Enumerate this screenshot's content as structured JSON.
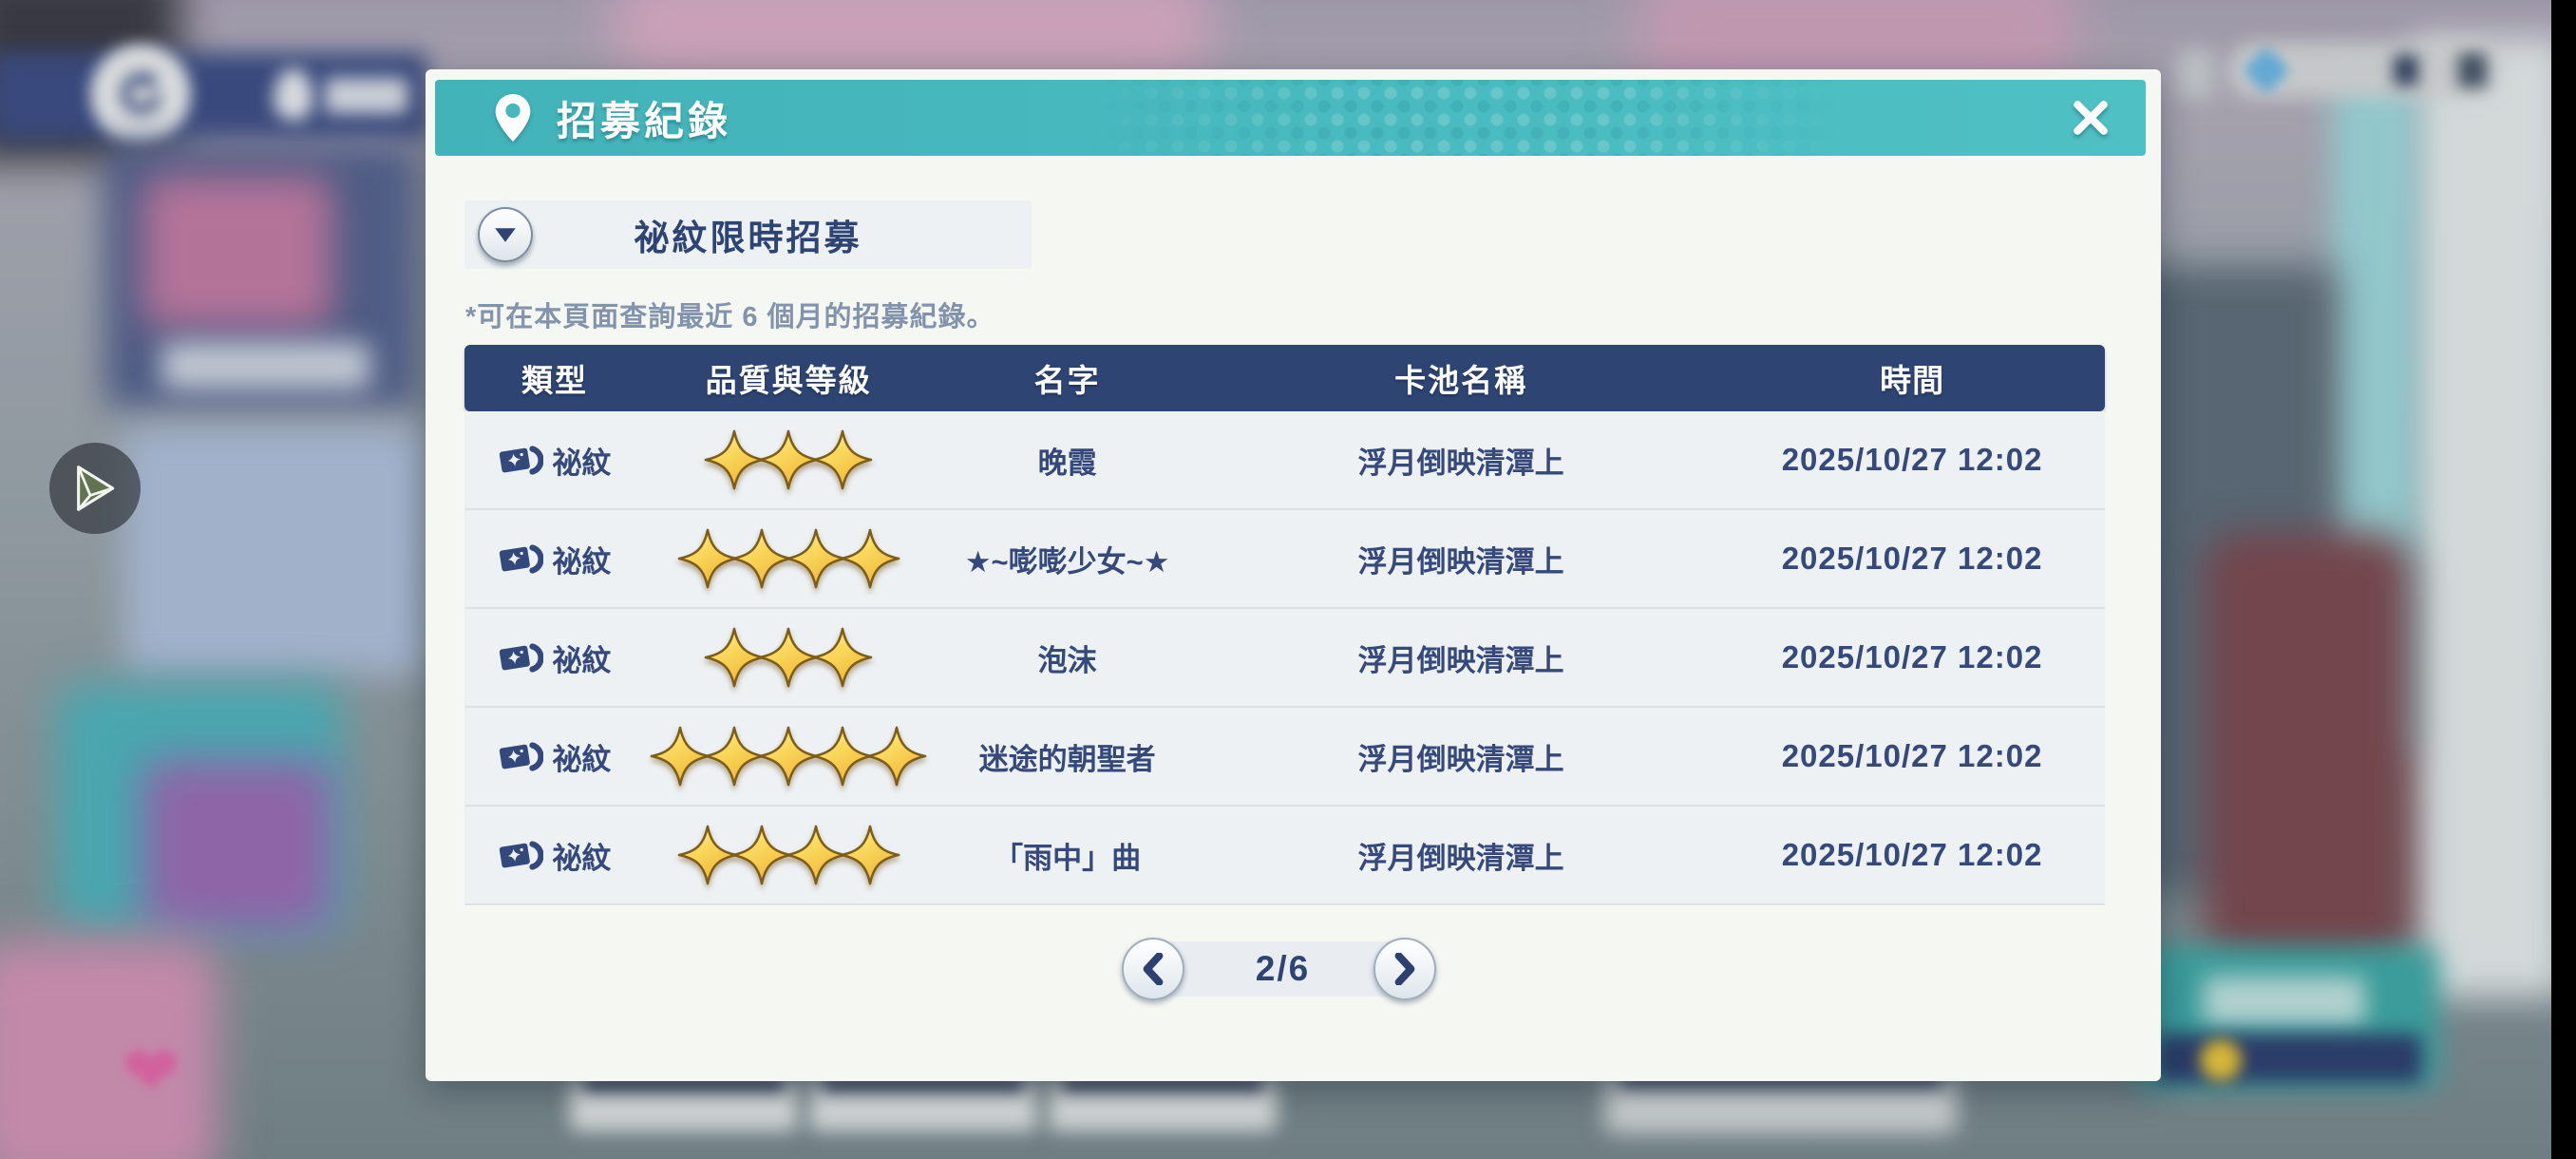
{
  "ui": {
    "colors": {
      "accent_teal": "#46b7bd",
      "header_navy": "#2e4573",
      "text_navy": "#35497a",
      "note_gray": "#8493ac",
      "row_bg": "#edf1f4",
      "modal_bg": "#f5f7f3",
      "star_gold": "#f7cf4b"
    },
    "icons": {
      "header": "map-pin-icon",
      "close": "x-mark-icon",
      "banner_toggle": "triangle-down-icon",
      "type_badge": "rune-ticket-icon",
      "quality": "four-point-star-icon",
      "prev": "chevron-left-icon",
      "next": "chevron-right-icon",
      "float_button": "paper-plane-icon",
      "back": "undo-arrow-icon"
    }
  },
  "modal": {
    "title": "招募紀錄",
    "banner": {
      "label": "祕紋限時招募"
    },
    "note": "*可在本頁面查詢最近 6 個月的招募紀錄。",
    "table": {
      "columns": [
        "類型",
        "品質與等級",
        "名字",
        "卡池名稱",
        "時間"
      ],
      "rows": [
        {
          "type": "祕紋",
          "stars": 3,
          "name": "晚霞",
          "pool": "浮月倒映清潭上",
          "time": "2025/10/27 12:02"
        },
        {
          "type": "祕紋",
          "stars": 4,
          "name": "★~嘭嘭少女~★",
          "pool": "浮月倒映清潭上",
          "time": "2025/10/27 12:02"
        },
        {
          "type": "祕紋",
          "stars": 3,
          "name": "泡沫",
          "pool": "浮月倒映清潭上",
          "time": "2025/10/27 12:02"
        },
        {
          "type": "祕紋",
          "stars": 5,
          "name": "迷途的朝聖者",
          "pool": "浮月倒映清潭上",
          "time": "2025/10/27 12:02"
        },
        {
          "type": "祕紋",
          "stars": 4,
          "name": "「雨中」曲",
          "pool": "浮月倒映清潭上",
          "time": "2025/10/27 12:02"
        }
      ]
    },
    "pagination": {
      "current": "2/6"
    }
  }
}
